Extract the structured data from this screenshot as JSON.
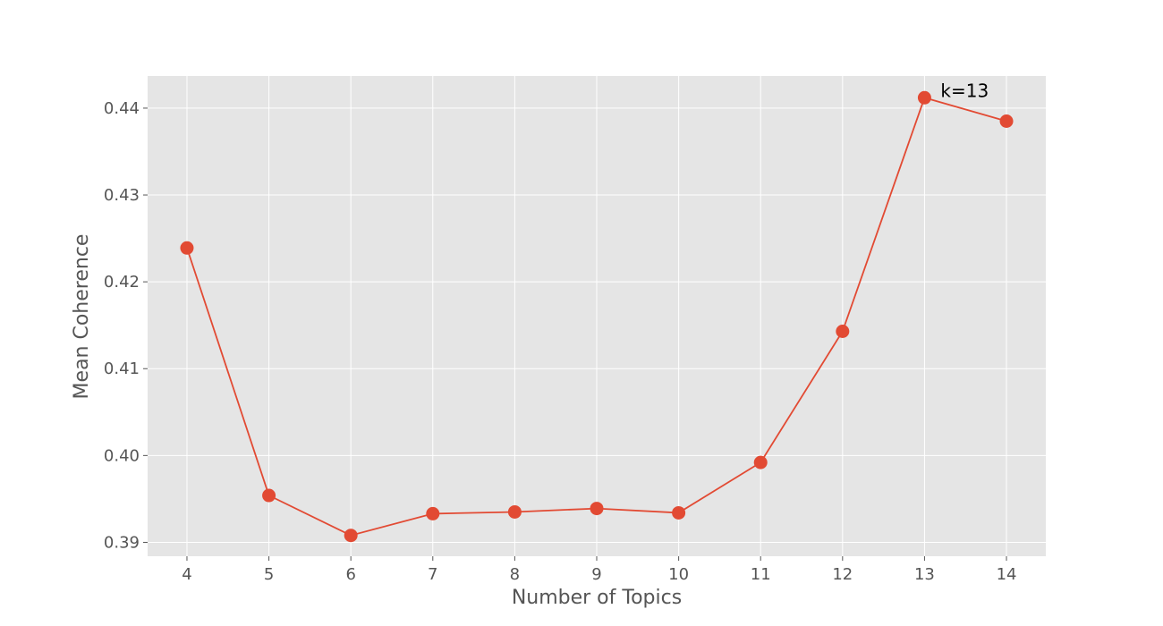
{
  "chart_data": {
    "type": "line",
    "xlabel": "Number of Topics",
    "ylabel": "Mean Coherence",
    "x": [
      4,
      5,
      6,
      7,
      8,
      9,
      10,
      11,
      12,
      13,
      14
    ],
    "y": [
      0.4239,
      0.3954,
      0.3908,
      0.3933,
      0.3935,
      0.3939,
      0.3934,
      0.3992,
      0.4143,
      0.4412,
      0.4385
    ],
    "x_ticks": [
      "4",
      "5",
      "6",
      "7",
      "8",
      "9",
      "10",
      "11",
      "12",
      "13",
      "14"
    ],
    "y_ticks": [
      "0.39",
      "0.40",
      "0.41",
      "0.42",
      "0.43",
      "0.44"
    ],
    "xlim": [
      3.52,
      14.48
    ],
    "ylim": [
      0.3884,
      0.4437
    ],
    "grid": true,
    "annotation": {
      "text": "k=13",
      "x": 13,
      "y": 0.4412
    },
    "colors": {
      "line": "#E24A33",
      "marker": "#E24A33",
      "panel": "#E5E5E5",
      "grid": "#FFFFFF",
      "text": "#555555"
    }
  }
}
